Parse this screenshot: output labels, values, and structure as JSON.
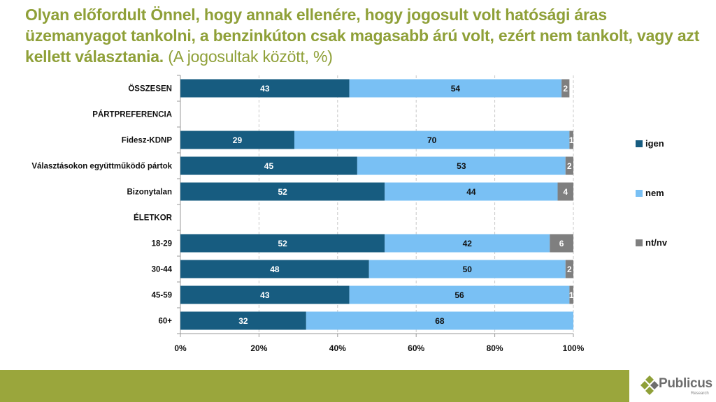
{
  "title": {
    "bold": "Olyan előfordult Önnel, hogy annak ellenére, hogy jogosult volt hatósági áras üzemanyagot tankolni, a benzinkúton csak magasabb árú volt, ezért nem tankolt, vagy azt kellett választania.",
    "normal": "(A jogosultak között, %)"
  },
  "colors": {
    "igen": "#175c80",
    "nem": "#79c0f4",
    "ntnv": "#7f7f7f",
    "title": "#8fa038",
    "footer": "#9aa63c"
  },
  "chart_data": {
    "type": "bar",
    "orientation": "horizontal",
    "stacked": true,
    "title": "Olyan előfordult Önnel, hogy annak ellenére, hogy jogosult volt hatósági áras üzemanyagot tankolni, a benzinkúton csak magasabb árú volt, ezért nem tankolt, vagy azt kellett választania. (A jogosultak között, %)",
    "xlabel": "",
    "ylabel": "",
    "xlim": [
      0,
      100
    ],
    "x_ticks": [
      "0%",
      "20%",
      "40%",
      "60%",
      "80%",
      "100%"
    ],
    "grid": "vertical dashed",
    "legend_position": "right",
    "categories": [
      "ÖSSZESEN",
      "PÁRTPREFERENCIA",
      "Fidesz-KDNP",
      "Választásokon együttműködő pártok",
      "Bizonytalan",
      "ÉLETKOR",
      "18-29",
      "30-44",
      "45-59",
      "60+"
    ],
    "series": [
      {
        "name": "igen",
        "values": [
          43,
          null,
          29,
          45,
          52,
          null,
          52,
          48,
          43,
          32
        ]
      },
      {
        "name": "nem",
        "values": [
          54,
          null,
          70,
          53,
          44,
          null,
          42,
          50,
          56,
          68
        ]
      },
      {
        "name": "nt/nv",
        "values": [
          2,
          null,
          1,
          2,
          4,
          null,
          6,
          2,
          1,
          null
        ]
      }
    ]
  },
  "footer": {
    "brand": "Publicus",
    "sub": "Research"
  }
}
